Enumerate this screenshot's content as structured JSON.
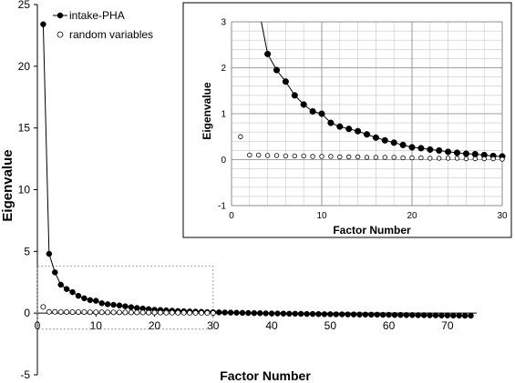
{
  "chart_data": [
    {
      "type": "scatter",
      "xlabel": "Factor Number",
      "ylabel": "Eigenvalue",
      "xlim": [
        0,
        75
      ],
      "ylim": [
        -5,
        25
      ],
      "x_ticks": [
        0,
        10,
        20,
        30,
        40,
        50,
        60,
        70
      ],
      "y_ticks": [
        -5,
        0,
        5,
        10,
        15,
        20,
        25
      ],
      "grid": false,
      "legend": "top-left",
      "zoom_box": {
        "x": [
          0,
          30
        ],
        "y": [
          -1.3,
          3.8
        ]
      },
      "series": [
        {
          "name": "intake-PHA",
          "marker": "filled-circle",
          "line": true,
          "x": [
            1,
            2,
            3,
            4,
            5,
            6,
            7,
            8,
            9,
            10,
            11,
            12,
            13,
            14,
            15,
            16,
            17,
            18,
            19,
            20,
            21,
            22,
            23,
            24,
            25,
            26,
            27,
            28,
            29,
            30,
            31,
            32,
            33,
            34,
            35,
            36,
            37,
            38,
            39,
            40,
            41,
            42,
            43,
            44,
            45,
            46,
            47,
            48,
            49,
            50,
            51,
            52,
            53,
            54,
            55,
            56,
            57,
            58,
            59,
            60,
            61,
            62,
            63,
            64,
            65,
            66,
            67,
            68,
            69,
            70,
            71,
            72,
            73,
            74
          ],
          "values": [
            23.4,
            4.8,
            3.3,
            2.3,
            1.95,
            1.7,
            1.4,
            1.2,
            1.05,
            1.0,
            0.8,
            0.72,
            0.67,
            0.62,
            0.55,
            0.48,
            0.42,
            0.37,
            0.32,
            0.27,
            0.25,
            0.22,
            0.2,
            0.17,
            0.15,
            0.13,
            0.12,
            0.1,
            0.08,
            0.07,
            0.06,
            0.05,
            0.04,
            0.03,
            0.02,
            0.01,
            0.0,
            -0.01,
            -0.02,
            -0.03,
            -0.03,
            -0.04,
            -0.05,
            -0.05,
            -0.06,
            -0.07,
            -0.07,
            -0.08,
            -0.09,
            -0.09,
            -0.1,
            -0.1,
            -0.11,
            -0.11,
            -0.12,
            -0.12,
            -0.13,
            -0.13,
            -0.14,
            -0.14,
            -0.15,
            -0.15,
            -0.16,
            -0.16,
            -0.17,
            -0.17,
            -0.18,
            -0.18,
            -0.19,
            -0.19,
            -0.2,
            -0.2,
            -0.21,
            -0.21
          ]
        },
        {
          "name": "random variables",
          "marker": "open-circle",
          "line": false,
          "x": [
            1,
            2,
            3,
            4,
            5,
            6,
            7,
            8,
            9,
            10,
            11,
            12,
            13,
            14,
            15,
            16,
            17,
            18,
            19,
            20,
            21,
            22,
            23,
            24,
            25,
            26,
            27,
            28,
            29,
            30
          ],
          "values": [
            0.5,
            0.1,
            0.1,
            0.09,
            0.09,
            0.08,
            0.08,
            0.08,
            0.07,
            0.07,
            0.07,
            0.06,
            0.06,
            0.06,
            0.05,
            0.05,
            0.05,
            0.05,
            0.04,
            0.04,
            0.04,
            0.03,
            0.03,
            0.03,
            0.03,
            0.02,
            0.02,
            0.02,
            0.02,
            0.01
          ]
        }
      ]
    },
    {
      "type": "scatter",
      "xlabel": "Factor Number",
      "ylabel": "Eigenvalue",
      "xlim": [
        0,
        30
      ],
      "ylim": [
        -1,
        3
      ],
      "x_ticks": [
        0,
        10,
        20,
        30
      ],
      "y_ticks": [
        -1,
        0,
        1,
        2,
        3
      ],
      "grid": true,
      "series": [
        {
          "name": "intake-PHA",
          "marker": "filled-circle",
          "line": true,
          "x": [
            4,
            5,
            6,
            7,
            8,
            9,
            10,
            11,
            12,
            13,
            14,
            15,
            16,
            17,
            18,
            19,
            20,
            21,
            22,
            23,
            24,
            25,
            26,
            27,
            28,
            29,
            30
          ],
          "values": [
            2.3,
            1.95,
            1.7,
            1.4,
            1.2,
            1.05,
            1.0,
            0.8,
            0.72,
            0.67,
            0.62,
            0.55,
            0.48,
            0.42,
            0.37,
            0.32,
            0.27,
            0.25,
            0.22,
            0.2,
            0.17,
            0.15,
            0.13,
            0.12,
            0.1,
            0.08,
            0.07
          ],
          "line_from": {
            "x": 3.3,
            "y": 3.0
          }
        },
        {
          "name": "random variables",
          "marker": "open-circle",
          "line": false,
          "x": [
            1,
            2,
            3,
            4,
            5,
            6,
            7,
            8,
            9,
            10,
            11,
            12,
            13,
            14,
            15,
            16,
            17,
            18,
            19,
            20,
            21,
            22,
            23,
            24,
            25,
            26,
            27,
            28,
            29,
            30
          ],
          "values": [
            0.5,
            0.1,
            0.1,
            0.09,
            0.09,
            0.08,
            0.08,
            0.08,
            0.07,
            0.07,
            0.07,
            0.06,
            0.06,
            0.06,
            0.05,
            0.05,
            0.05,
            0.05,
            0.04,
            0.04,
            0.04,
            0.03,
            0.03,
            0.03,
            0.03,
            0.02,
            0.02,
            0.02,
            0.02,
            0.01
          ]
        }
      ]
    }
  ]
}
